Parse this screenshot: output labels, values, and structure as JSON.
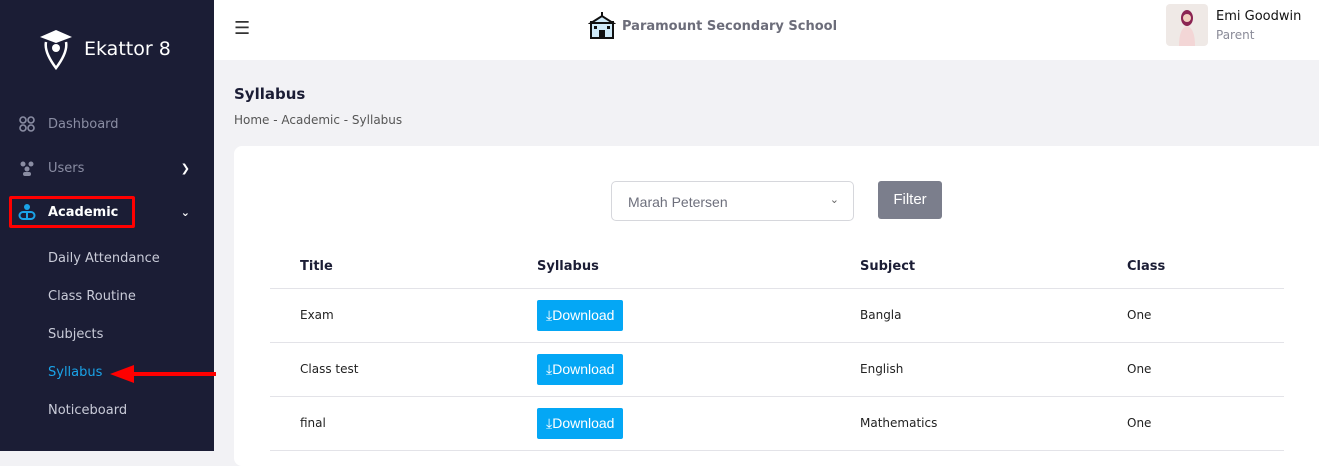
{
  "sidebar": {
    "brand": "Ekattor 8",
    "items": [
      {
        "label": "Dashboard",
        "icon": "grid-icon"
      },
      {
        "label": "Users",
        "icon": "users-icon"
      },
      {
        "label": "Academic",
        "icon": "academic-icon"
      }
    ],
    "submenu": [
      "Daily Attendance",
      "Class Routine",
      "Subjects",
      "Syllabus",
      "Noticeboard"
    ]
  },
  "header": {
    "school": "Paramount Secondary School",
    "user_name": "Emi Goodwin",
    "user_role": "Parent"
  },
  "page": {
    "title": "Syllabus",
    "breadcrumb": "Home - Academic - Syllabus"
  },
  "filter": {
    "selected": "Marah Petersen",
    "button": "Filter"
  },
  "table": {
    "headers": [
      "Title",
      "Syllabus",
      "Subject",
      "Class"
    ],
    "rows": [
      {
        "title": "Exam",
        "syllabus": "Download",
        "subject": "Bangla",
        "class": "One"
      },
      {
        "title": "Class test",
        "syllabus": "Download",
        "subject": "English",
        "class": "One"
      },
      {
        "title": "final",
        "syllabus": "Download",
        "subject": "Mathematics",
        "class": "One"
      }
    ]
  },
  "colors": {
    "sidebar": "#1b1d35",
    "accent": "#04a7f5",
    "annotation": "#ff0000"
  }
}
